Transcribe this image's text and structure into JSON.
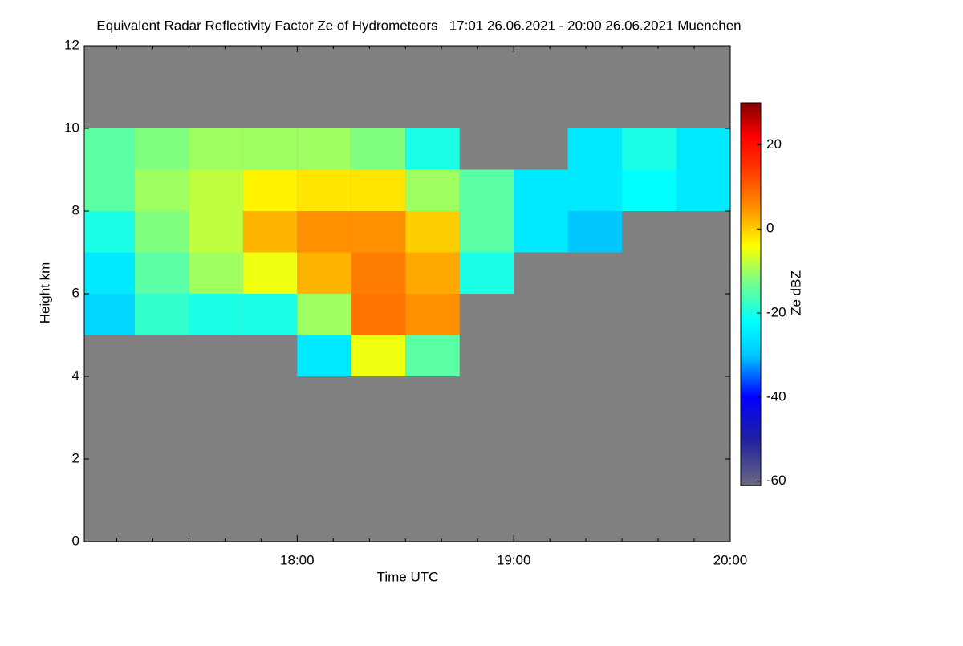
{
  "chart_data": {
    "type": "heatmap",
    "title": "Equivalent Radar Reflectivity Factor Ze of Hydrometeors   17:01 26.06.2021 - 20:00 26.06.2021 Muenchen",
    "x_label": "Time UTC",
    "y_label": "Height km",
    "colorbar_label": "Ze dBZ",
    "xlim": [
      17.0167,
      20.0
    ],
    "xticks": [
      {
        "value": 18,
        "label": "18:00"
      },
      {
        "value": 19,
        "label": "19:00"
      },
      {
        "value": 20,
        "label": "20:00"
      }
    ],
    "xminorticks": [
      17.1667,
      17.3333,
      17.5,
      17.6667,
      17.8333,
      18.1667,
      18.3333,
      18.5,
      18.6667,
      18.8333,
      19.1667,
      19.3333,
      19.5,
      19.6667,
      19.8333
    ],
    "ylim": [
      0,
      12
    ],
    "yticks": [
      0,
      2,
      4,
      6,
      8,
      10,
      12
    ],
    "zlim": [
      -61,
      30
    ],
    "zticks": [
      -60,
      -40,
      -20,
      0,
      20
    ],
    "background": "#808080",
    "colormap": [
      [
        -61,
        "#6a6a80"
      ],
      [
        -50,
        "#2020a0"
      ],
      [
        -40,
        "#0000ff"
      ],
      [
        -30,
        "#00c8ff"
      ],
      [
        -22,
        "#00ffff"
      ],
      [
        -12,
        "#80ff80"
      ],
      [
        -4,
        "#ffff00"
      ],
      [
        5,
        "#ff9000"
      ],
      [
        15,
        "#ff3000"
      ],
      [
        22,
        "#ff0000"
      ],
      [
        30,
        "#800000"
      ]
    ],
    "xbins": [
      17.0167,
      17.25,
      17.5,
      17.75,
      18.0,
      18.25,
      18.5,
      18.75,
      19.0,
      19.25,
      19.5,
      19.75,
      20.0
    ],
    "ybins": [
      0,
      1,
      2,
      3,
      4,
      5,
      6,
      7,
      8,
      9,
      10,
      11,
      12
    ],
    "z": [
      [
        null,
        null,
        null,
        null,
        null,
        null,
        null,
        null,
        null,
        null,
        null,
        null
      ],
      [
        null,
        null,
        null,
        null,
        null,
        null,
        null,
        null,
        null,
        null,
        null,
        null
      ],
      [
        null,
        null,
        null,
        null,
        null,
        null,
        null,
        null,
        null,
        null,
        null,
        null
      ],
      [
        null,
        null,
        null,
        null,
        null,
        null,
        null,
        null,
        null,
        null,
        null,
        null
      ],
      [
        null,
        null,
        null,
        null,
        -25,
        -5,
        -15,
        null,
        null,
        null,
        null,
        null
      ],
      [
        -28,
        -18,
        -20,
        -20,
        -10,
        8,
        5,
        null,
        null,
        null,
        null,
        null
      ],
      [
        -25,
        -15,
        -10,
        -5,
        2,
        7,
        3,
        -20,
        null,
        null,
        null,
        null
      ],
      [
        -20,
        -12,
        -8,
        2,
        5,
        5,
        0,
        -15,
        -25,
        -30,
        null,
        null
      ],
      [
        -15,
        -10,
        -8,
        -3,
        -2,
        -2,
        -10,
        -15,
        -25,
        -25,
        -22,
        -25
      ],
      [
        -15,
        -12,
        -10,
        -10,
        -10,
        -12,
        -20,
        null,
        null,
        -25,
        -20,
        -25
      ],
      [
        null,
        null,
        null,
        null,
        null,
        null,
        null,
        null,
        null,
        null,
        null,
        null
      ],
      [
        null,
        null,
        null,
        null,
        null,
        null,
        null,
        null,
        null,
        null,
        null,
        null
      ]
    ]
  }
}
